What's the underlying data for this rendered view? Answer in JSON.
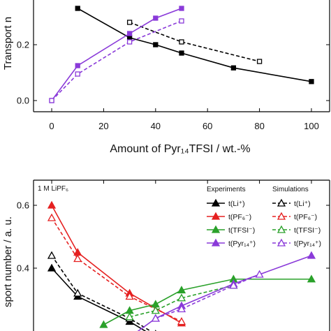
{
  "chart_data": [
    {
      "type": "line",
      "xlabel": "Amount of Pyr₁₄TFSI / wt.-%",
      "ylabel": "Transport n",
      "xlim": [
        -7,
        107
      ],
      "ylim": [
        -0.04,
        0.36
      ],
      "xticks": [
        0,
        20,
        40,
        60,
        80,
        100
      ],
      "yticks": [
        0.0,
        0.2
      ],
      "ytick_labels": [
        "0.0",
        "0.2"
      ],
      "series": [
        {
          "color": "#000000",
          "marker": "square-filled",
          "dash": "solid",
          "x": [
            10,
            30,
            40,
            50,
            70,
            100
          ],
          "y": [
            0.33,
            0.225,
            0.2,
            0.17,
            0.117,
            0.068
          ]
        },
        {
          "color": "#000000",
          "marker": "square-open",
          "dash": "dashed",
          "x": [
            30,
            50,
            80
          ],
          "y": [
            0.28,
            0.21,
            0.14
          ]
        },
        {
          "color": "#8a3ad9",
          "marker": "square-filled",
          "dash": "solid",
          "x": [
            0,
            10,
            30,
            40,
            50
          ],
          "y": [
            0.0,
            0.125,
            0.24,
            0.295,
            0.33
          ]
        },
        {
          "color": "#8a3ad9",
          "marker": "square-open",
          "dash": "dashed",
          "x": [
            0,
            10,
            30,
            50
          ],
          "y": [
            0.0,
            0.095,
            0.21,
            0.285
          ]
        }
      ]
    },
    {
      "type": "line",
      "ylabel": "sport number / a. u.",
      "annotation": "1 M LiPF₆",
      "xlim": [
        -7,
        107
      ],
      "ylim": [
        0.2,
        0.68
      ],
      "yticks": [
        0.4,
        0.6
      ],
      "ytick_labels": [
        "0.4",
        "0.6"
      ],
      "legend": {
        "placement": "top-right",
        "col_headers": [
          "Experiments",
          "Simulations"
        ],
        "experiments": [
          "t(Li⁺)",
          "t(PF₆⁻)",
          "t(TFSI⁻)",
          "t(Pyr₁₄⁺)"
        ],
        "simulations": [
          "t(Li⁺)",
          "t(PF₆⁻)",
          "t(TFSI⁻)",
          "t(Pyr₁₄⁺)"
        ]
      },
      "series": [
        {
          "color": "#000000",
          "marker": "triangle-filled",
          "dash": "solid",
          "x": [
            0,
            10,
            30,
            40
          ],
          "y": [
            0.4,
            0.31,
            0.23,
            0.18
          ]
        },
        {
          "color": "#000000",
          "marker": "triangle-open",
          "dash": "dashed",
          "x": [
            0,
            10,
            30,
            40
          ],
          "y": [
            0.44,
            0.32,
            0.24,
            0.19
          ]
        },
        {
          "color": "#e52020",
          "marker": "triangle-filled",
          "dash": "solid",
          "x": [
            0,
            10,
            30,
            50
          ],
          "y": [
            0.6,
            0.45,
            0.32,
            0.225
          ]
        },
        {
          "color": "#e52020",
          "marker": "triangle-open",
          "dash": "dashed",
          "x": [
            0,
            10,
            30,
            50
          ],
          "y": [
            0.56,
            0.43,
            0.31,
            0.23
          ]
        },
        {
          "color": "#2aa12a",
          "marker": "triangle-filled",
          "dash": "solid",
          "x": [
            20,
            30,
            40,
            50,
            70,
            100
          ],
          "y": [
            0.22,
            0.265,
            0.285,
            0.33,
            0.365,
            0.365
          ]
        },
        {
          "color": "#2aa12a",
          "marker": "triangle-open",
          "dash": "dashed",
          "x": [
            30,
            40,
            50,
            70
          ],
          "y": [
            0.245,
            0.265,
            0.305,
            0.345
          ]
        },
        {
          "color": "#8a3ad9",
          "marker": "triangle-filled",
          "dash": "solid",
          "x": [
            30,
            40,
            50,
            70,
            100
          ],
          "y": [
            0.18,
            0.24,
            0.28,
            0.35,
            0.44
          ]
        },
        {
          "color": "#8a3ad9",
          "marker": "triangle-open",
          "dash": "dashed",
          "x": [
            40,
            50,
            70,
            80
          ],
          "y": [
            0.24,
            0.27,
            0.345,
            0.38
          ]
        }
      ]
    }
  ]
}
